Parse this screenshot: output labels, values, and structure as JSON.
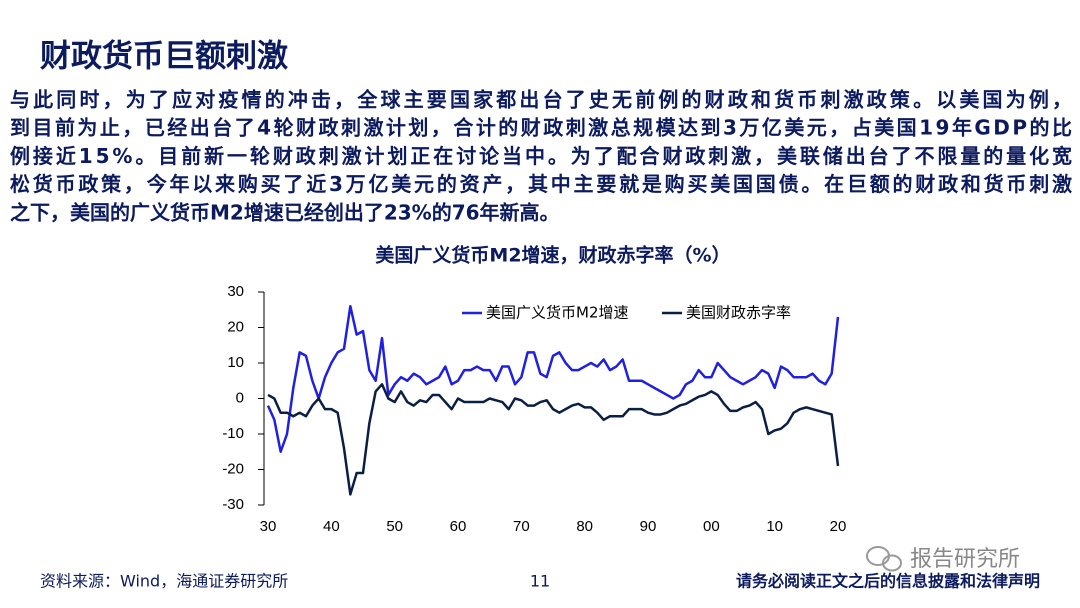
{
  "title": "财政货币巨额刺激",
  "body": [
    "与此同时，为了应对疫情的冲击，全球主要国家都出台了史无前例的财政和货币刺激政策。以美国为例，",
    "到目前为止，已经出台了4轮财政刺激计划，合计的财政刺激总规模达到3万亿美元，占美国19年GDP的比",
    "例接近15%。目前新一轮财政刺激计划正在讨论当中。为了配合财政刺激，美联储出台了不限量的量化宽",
    "松货币政策，今年以来购买了近3万亿美元的资产，其中主要就是购买美国国债。在巨额的财政和货币刺激",
    "之下，美国的广义货币M2增速已经创出了23%的76年新高。"
  ],
  "footer": {
    "source": "资料来源：Wind，海通证券研究所",
    "page": "11",
    "disclaimer": "请务必阅读正文之后的信息披露和法律声明"
  },
  "watermark": "报告研究所",
  "chart_data": {
    "type": "line",
    "title": "美国广义货币M2增速，财政赤字率（%）",
    "x": [
      1930,
      1931,
      1932,
      1933,
      1934,
      1935,
      1936,
      1937,
      1938,
      1939,
      1940,
      1941,
      1942,
      1943,
      1944,
      1945,
      1946,
      1947,
      1948,
      1949,
      1950,
      1951,
      1952,
      1953,
      1954,
      1955,
      1956,
      1957,
      1958,
      1959,
      1960,
      1961,
      1962,
      1963,
      1964,
      1965,
      1966,
      1967,
      1968,
      1969,
      1970,
      1971,
      1972,
      1973,
      1974,
      1975,
      1976,
      1977,
      1978,
      1979,
      1980,
      1981,
      1982,
      1983,
      1984,
      1985,
      1986,
      1987,
      1988,
      1989,
      1990,
      1991,
      1992,
      1993,
      1994,
      1995,
      1996,
      1997,
      1998,
      1999,
      2000,
      2001,
      2002,
      2003,
      2004,
      2005,
      2006,
      2007,
      2008,
      2009,
      2010,
      2011,
      2012,
      2013,
      2014,
      2015,
      2016,
      2017,
      2018,
      2019,
      2020
    ],
    "series": [
      {
        "name": "美国广义货币M2增速",
        "color": "#2020e0",
        "values": [
          -2,
          -6,
          -15,
          -10,
          3,
          13,
          12,
          5,
          0,
          6,
          10,
          13,
          14,
          26,
          18,
          19,
          8,
          5,
          17,
          1,
          4,
          6,
          5,
          7,
          6,
          4,
          5,
          6,
          9,
          4,
          5,
          8,
          8,
          9,
          8,
          8,
          5,
          9,
          9,
          4,
          6,
          13,
          13,
          7,
          6,
          12,
          13,
          10,
          8,
          8,
          9,
          10,
          9,
          11,
          8,
          9,
          11,
          5,
          5,
          5,
          4,
          3,
          2,
          1,
          0,
          1,
          4,
          5,
          8,
          6,
          6,
          10,
          8,
          6,
          5,
          4,
          5,
          6,
          8,
          7,
          3,
          9,
          8,
          6,
          6,
          6,
          7,
          5,
          4,
          7,
          23
        ]
      },
      {
        "name": "美国财政赤字率",
        "color": "#0b1f45",
        "values": [
          1,
          0,
          -4,
          -4,
          -5,
          -4,
          -5,
          -2,
          0,
          -3,
          -3,
          -4,
          -14,
          -27,
          -21,
          -21,
          -7,
          2,
          4,
          0,
          -1,
          2,
          -1,
          -2,
          -0.5,
          -1,
          1,
          1,
          -1,
          -3,
          0,
          -1,
          -1,
          -1,
          -1,
          0,
          -0.5,
          -1,
          -3,
          0,
          -0.5,
          -2,
          -2,
          -1,
          -0.5,
          -3,
          -4,
          -3,
          -2,
          -1.5,
          -2.5,
          -2.5,
          -4,
          -6,
          -5,
          -5,
          -5,
          -3,
          -3,
          -3,
          -4,
          -4.5,
          -4.5,
          -4,
          -3,
          -2,
          -1.5,
          -0.5,
          0.5,
          1,
          2,
          1,
          -1.5,
          -3.5,
          -3.5,
          -2.5,
          -2,
          -1,
          -3,
          -10,
          -9,
          -8.5,
          -7,
          -4,
          -3,
          -2.5,
          -3,
          -3.5,
          -4,
          -4.5,
          -19
        ]
      }
    ],
    "xlim": [
      1930,
      2020
    ],
    "xticks": [
      {
        "value": 1930,
        "label": "30"
      },
      {
        "value": 1940,
        "label": "40"
      },
      {
        "value": 1950,
        "label": "50"
      },
      {
        "value": 1960,
        "label": "60"
      },
      {
        "value": 1970,
        "label": "70"
      },
      {
        "value": 1980,
        "label": "80"
      },
      {
        "value": 1990,
        "label": "90"
      },
      {
        "value": 2000,
        "label": "00"
      },
      {
        "value": 2010,
        "label": "10"
      },
      {
        "value": 2020,
        "label": "20"
      }
    ],
    "ylim": [
      -30,
      30
    ],
    "yticks": [
      -30,
      -20,
      -10,
      0,
      10,
      20,
      30
    ],
    "grid": false,
    "legend": "top"
  }
}
